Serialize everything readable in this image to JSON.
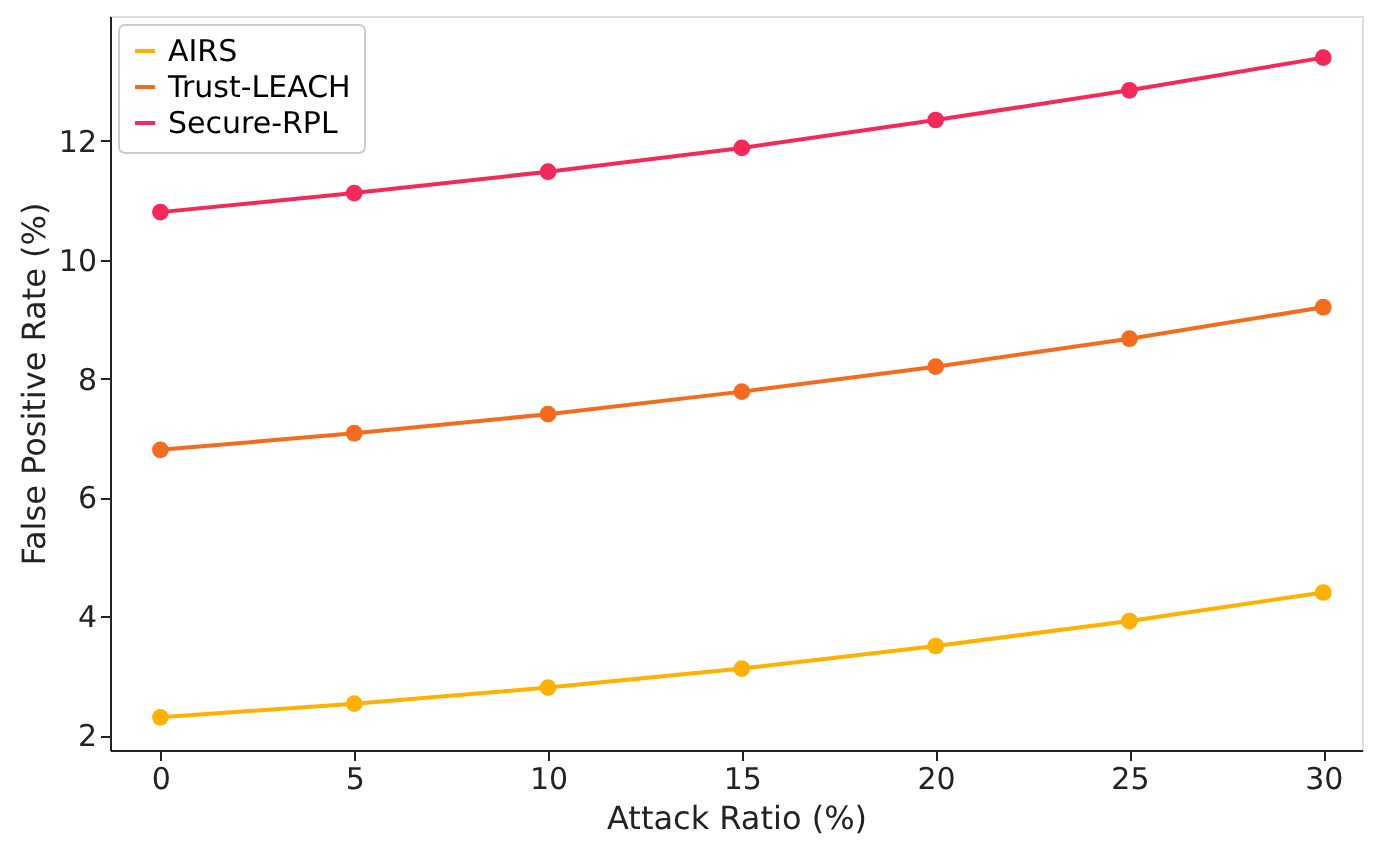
{
  "chart_data": {
    "type": "line",
    "xlabel": "Attack Ratio (%)",
    "ylabel": "False Positive Rate (%)",
    "x": [
      0,
      5,
      10,
      15,
      20,
      25,
      30
    ],
    "series": [
      {
        "name": "AIRS",
        "color": "#ffb000",
        "values": [
          2.3,
          2.53,
          2.8,
          3.12,
          3.5,
          3.92,
          4.4
        ]
      },
      {
        "name": "Trust-LEACH",
        "color": "#f46b1e",
        "values": [
          6.8,
          7.08,
          7.4,
          7.78,
          8.2,
          8.67,
          9.2
        ]
      },
      {
        "name": "Secure-RPL",
        "color": "#f5285a",
        "values": [
          10.8,
          11.12,
          11.48,
          11.88,
          12.35,
          12.85,
          13.4
        ]
      }
    ],
    "xlim": [
      -1.3,
      31.0
    ],
    "ylim": [
      1.75,
      14.1
    ],
    "xticks": [
      0,
      5,
      10,
      15,
      20,
      25,
      30
    ],
    "yticks": [
      2,
      4,
      6,
      8,
      10,
      12
    ],
    "grid": false,
    "legend": "top left",
    "marker": "circle",
    "line_style": "solid"
  }
}
